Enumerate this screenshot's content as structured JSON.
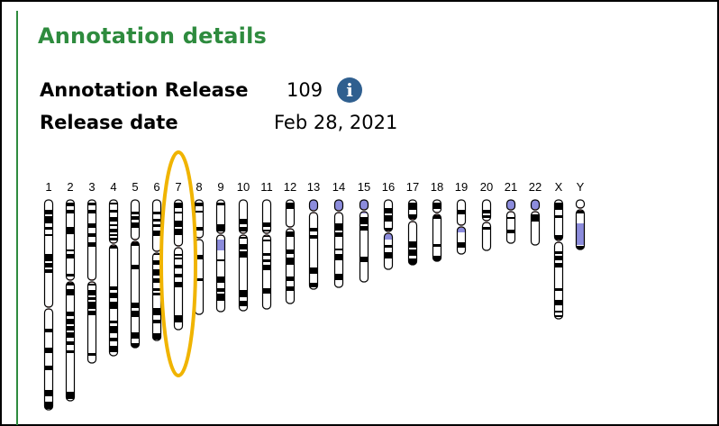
{
  "panel": {
    "title": "Annotation details",
    "annotation_release_label": "Annotation Release",
    "annotation_release_value": "109",
    "release_date_label": "Release date",
    "release_date_value": "Feb 28, 2021",
    "info_icon": "info-icon"
  },
  "ideogram": {
    "chromosomes": [
      "1",
      "2",
      "3",
      "4",
      "5",
      "6",
      "7",
      "8",
      "9",
      "10",
      "11",
      "12",
      "13",
      "14",
      "15",
      "16",
      "17",
      "18",
      "19",
      "20",
      "21",
      "22",
      "X",
      "Y"
    ],
    "highlighted_chromosome": "7",
    "highlight_color": "#f0b400",
    "colors": {
      "band_dark": "#000000",
      "band_light": "#ffffff",
      "centromere": "#e8a0a0",
      "heterochromatin": "#8c8cdc",
      "title_green": "#2e8b3e"
    }
  }
}
